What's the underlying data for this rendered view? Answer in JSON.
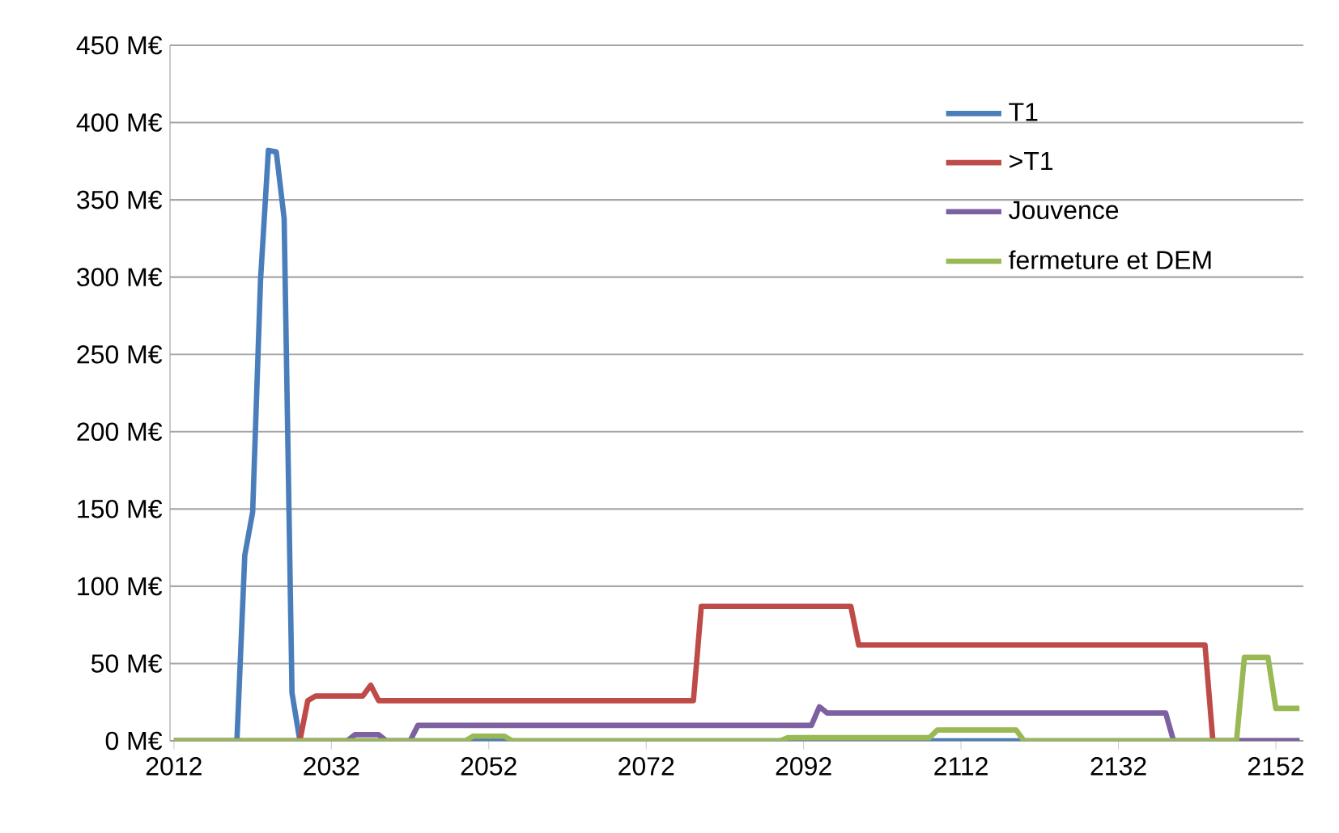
{
  "chart_data": {
    "type": "line",
    "xlim": [
      2011.5,
      2155.5
    ],
    "xticks": [
      2012,
      2032,
      2052,
      2072,
      2092,
      2112,
      2132,
      2152
    ],
    "ylim": [
      0,
      450
    ],
    "yticks": [
      {
        "value": 0,
        "label": "0 M€"
      },
      {
        "value": 50,
        "label": "50 M€"
      },
      {
        "value": 100,
        "label": "100 M€"
      },
      {
        "value": 150,
        "label": "150 M€"
      },
      {
        "value": 200,
        "label": "200 M€"
      },
      {
        "value": 250,
        "label": "250 M€"
      },
      {
        "value": 300,
        "label": "300 M€"
      },
      {
        "value": 350,
        "label": "350 M€"
      },
      {
        "value": 400,
        "label": "400 M€"
      },
      {
        "value": 450,
        "label": "450 M€"
      }
    ],
    "grid": "y",
    "legend": "top right",
    "marker": "none",
    "line_style": "solid",
    "series": [
      {
        "name": "T1",
        "color": "#4a7ebb",
        "x": [
          2012,
          2020,
          2021,
          2022,
          2023,
          2024,
          2025,
          2026,
          2027,
          2028,
          2155
        ],
        "values": [
          0,
          0,
          120,
          148,
          298,
          382,
          381,
          338,
          31,
          0,
          0
        ]
      },
      {
        "name": ">T1",
        "color": "#be4b48",
        "x": [
          2012,
          2028,
          2029,
          2030,
          2036,
          2037,
          2038,
          2078,
          2079,
          2098,
          2099,
          2143,
          2144,
          2155
        ],
        "values": [
          0,
          0,
          26,
          29,
          29,
          36,
          26,
          26,
          87,
          87,
          62,
          62,
          0,
          0
        ]
      },
      {
        "name": "Jouvence",
        "color": "#7d60a0",
        "x": [
          2012,
          2034,
          2035,
          2038,
          2039,
          2042,
          2043,
          2093,
          2094,
          2095,
          2138,
          2139,
          2155
        ],
        "values": [
          0,
          0,
          4,
          4,
          0,
          0,
          10,
          10,
          22,
          18,
          18,
          0,
          0
        ]
      },
      {
        "name": "fermeture et DEM",
        "color": "#98b954",
        "x": [
          2012,
          2049,
          2050,
          2054,
          2055,
          2089,
          2090,
          2108,
          2109,
          2119,
          2120,
          2147,
          2148,
          2151,
          2152,
          2155
        ],
        "values": [
          0,
          0,
          3,
          3,
          0,
          0,
          2,
          2,
          7,
          7,
          0,
          0,
          54,
          54,
          21,
          21
        ]
      }
    ]
  }
}
